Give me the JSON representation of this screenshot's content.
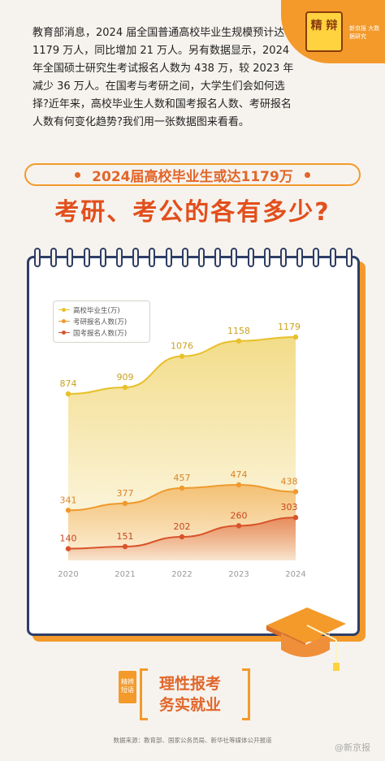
{
  "intro": "教育部消息，2024 届全国普通高校毕业生规模预计达 1179 万人，同比增加 21 万人。另有数据显示，2024 年全国硕士研究生考试报名人数为 438 万，较 2023 年减少 36 万人。在国考与考研之间，大学生们会如何选择?近年来，高校毕业生人数和国考报名人数、考研报名人数有何变化趋势?我们用一张数据图来看看。",
  "badge": {
    "logo": "精 辩",
    "brand": "新京报 大数据研究"
  },
  "banner": "2024届高校毕业生或达1179万",
  "headline": "考研、考公的各有多少?",
  "slogan": {
    "line1": "理性报考",
    "line2": "务实就业",
    "seal": "精辨 短语"
  },
  "source": "数据来源：教育部、国家公务员局、新华社等媒体公开报道",
  "watermark": "@新京报",
  "colors": {
    "graduates": "#e8c02a",
    "kaoyan": "#ef9a2e",
    "guokao": "#d9532a",
    "accent": "#f39a2b",
    "frame": "#2d3e66"
  },
  "chart_data": {
    "type": "area",
    "categories": [
      "2020",
      "2021",
      "2022",
      "2023",
      "2024"
    ],
    "series": [
      {
        "name": "高校毕业生(万)",
        "values": [
          874,
          909,
          1076,
          1158,
          1179
        ]
      },
      {
        "name": "考研报名人数(万)",
        "values": [
          341,
          377,
          457,
          474,
          438
        ]
      },
      {
        "name": "国考报名人数(万)",
        "values": [
          140,
          151,
          202,
          260,
          303
        ]
      }
    ],
    "legend": "top-left",
    "grid": false
  }
}
